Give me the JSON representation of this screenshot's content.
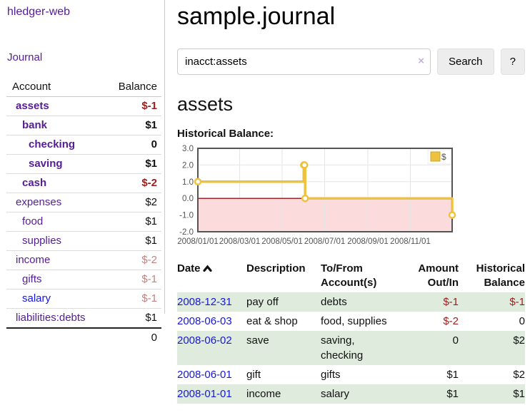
{
  "app_title": "hledger-web",
  "sidebar": {
    "journal_link": "Journal",
    "table": {
      "account_header": "Account",
      "balance_header": "Balance",
      "rows": [
        {
          "name": "assets",
          "balance": "$-1",
          "indent": 0,
          "name_style": "matched",
          "balance_style": "bold neg-strong"
        },
        {
          "name": "bank",
          "balance": "$1",
          "indent": 1,
          "name_style": "matched",
          "balance_style": "bold"
        },
        {
          "name": "checking",
          "balance": "0",
          "indent": 2,
          "name_style": "matched",
          "balance_style": "bold"
        },
        {
          "name": "saving",
          "balance": "$1",
          "indent": 2,
          "name_style": "matched",
          "balance_style": "bold"
        },
        {
          "name": "cash",
          "balance": "$-2",
          "indent": 1,
          "name_style": "matched",
          "balance_style": "bold neg-strong"
        },
        {
          "name": "expenses",
          "balance": "$2",
          "indent": 0,
          "name_style": "link",
          "balance_style": ""
        },
        {
          "name": "food",
          "balance": "$1",
          "indent": 1,
          "name_style": "link",
          "balance_style": ""
        },
        {
          "name": "supplies",
          "balance": "$1",
          "indent": 1,
          "name_style": "link",
          "balance_style": ""
        },
        {
          "name": "income",
          "balance": "$-2",
          "indent": 0,
          "name_style": "link",
          "balance_style": "neg-dim"
        },
        {
          "name": "gifts",
          "balance": "$-1",
          "indent": 1,
          "name_style": "link",
          "balance_style": "neg-dim"
        },
        {
          "name": "salary",
          "balance": "$-1",
          "indent": 1,
          "name_style": "link-unvisited",
          "balance_style": "neg-dim"
        },
        {
          "name": "liabilities:debts",
          "balance": "$1",
          "indent": 0,
          "name_style": "link",
          "balance_style": ""
        }
      ],
      "total": "0"
    }
  },
  "main": {
    "title": "sample.journal",
    "search": {
      "value": "inacct:assets",
      "clear": "×",
      "button_label": "Search",
      "help_label": "?"
    },
    "heading": "assets",
    "chart_title": "Historical Balance:"
  },
  "chart_data": {
    "type": "line",
    "step": true,
    "title": "Historical Balance",
    "series": [
      {
        "name": "$",
        "points": [
          [
            "2008-01-01",
            1
          ],
          [
            "2008-06-01",
            2
          ],
          [
            "2008-06-02",
            2
          ],
          [
            "2008-06-03",
            0
          ],
          [
            "2008-12-31",
            -1
          ]
        ]
      }
    ],
    "xlim": [
      "2008-01-01",
      "2008-12-31"
    ],
    "ylim": [
      -2,
      3
    ],
    "y_ticks": [
      {
        "value": 3,
        "label": "3.0"
      },
      {
        "value": 2,
        "label": "2.0"
      },
      {
        "value": 1,
        "label": "1.0"
      },
      {
        "value": 0,
        "label": "0.0"
      },
      {
        "value": -1,
        "label": "-1.0"
      },
      {
        "value": -2,
        "label": "-2.0"
      }
    ],
    "x_ticks": [
      {
        "date": "2008-01-01",
        "label": "2008/01/01"
      },
      {
        "date": "2008-03-01",
        "label": "2008/03/01"
      },
      {
        "date": "2008-05-01",
        "label": "2008/05/01"
      },
      {
        "date": "2008-07-01",
        "label": "2008/07/01"
      },
      {
        "date": "2008-09-01",
        "label": "2008/09/01"
      },
      {
        "date": "2008-11-01",
        "label": "2008/11/01"
      }
    ],
    "legend_position": "top-right",
    "grid": true,
    "colors": {
      "series": "#edc240",
      "series_border": "#cfa61e",
      "negative_fill": "#fbdbdb",
      "zero_line": "#a02128",
      "gridline": "#e6e6e6",
      "plot_border": "#545454",
      "tick_text": "#545454"
    }
  },
  "register": {
    "headers": {
      "date": "Date",
      "description": "Description",
      "account": "To/From Account(s)",
      "amount": "Amount Out/In",
      "balance": "Historical Balance"
    },
    "rows": [
      {
        "date": "2008-12-31",
        "description": "pay off",
        "accounts": "debts",
        "amount": "$-1",
        "balance": "$-1",
        "amount_style": "neg",
        "balance_style": "neg"
      },
      {
        "date": "2008-06-03",
        "description": "eat & shop",
        "accounts": "food, supplies",
        "amount": "$-2",
        "balance": "0",
        "amount_style": "neg",
        "balance_style": ""
      },
      {
        "date": "2008-06-02",
        "description": "save",
        "accounts": "saving,\nchecking",
        "amount": "0",
        "balance": "$2",
        "amount_style": "",
        "balance_style": ""
      },
      {
        "date": "2008-06-01",
        "description": "gift",
        "accounts": "gifts",
        "amount": "$1",
        "balance": "$2",
        "amount_style": "",
        "balance_style": ""
      },
      {
        "date": "2008-01-01",
        "description": "income",
        "accounts": "salary",
        "amount": "$1",
        "balance": "$1",
        "amount_style": "",
        "balance_style": ""
      }
    ]
  }
}
